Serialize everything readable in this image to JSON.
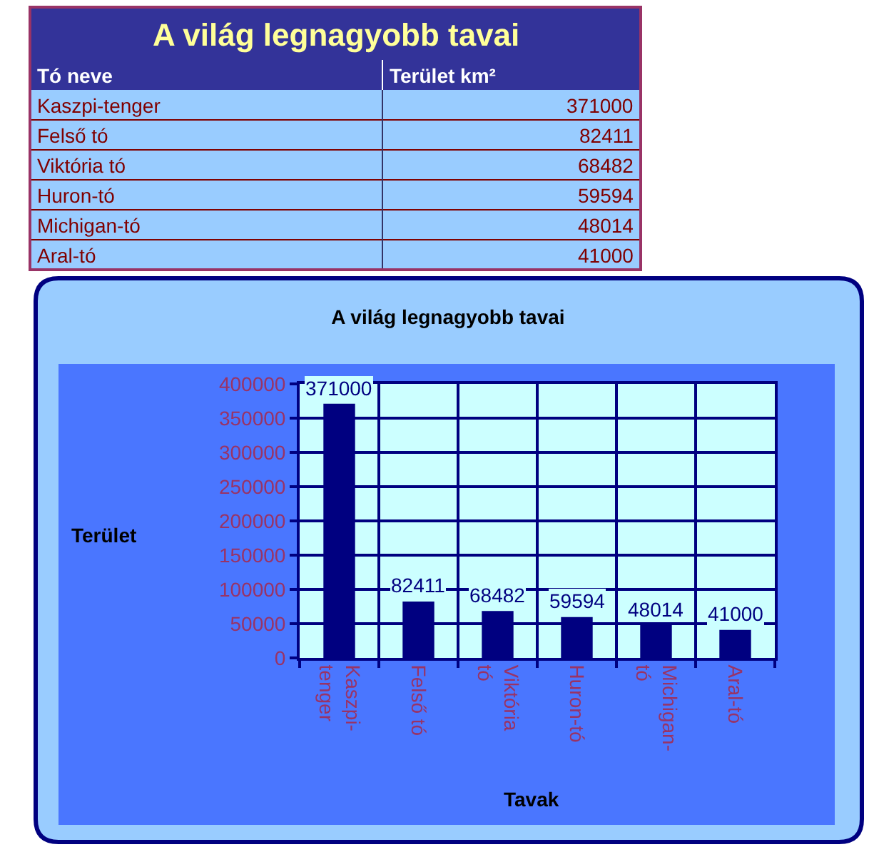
{
  "chart_data": [
    {
      "type": "other",
      "title": "A világ legnagyobb tavai",
      "annotations": [
        "Tó neve",
        "Terület km²"
      ],
      "categories": [
        "Kaszpi-tenger",
        "Felső tó",
        "Viktória tó",
        "Huron-tó",
        "Michigan-tó",
        "Aral-tó"
      ],
      "values": [
        371000,
        82411,
        68482,
        59594,
        48014,
        41000
      ],
      "data_labels": true
    },
    {
      "type": "bar",
      "title": "A világ legnagyobb tavai",
      "xlabel": "Tavak",
      "ylabel": "Terület",
      "categories": [
        "Kaszpi-tenger",
        "Felső tó",
        "Viktória tó",
        "Huron-tó",
        "Michigan-tó",
        "Aral-tó"
      ],
      "values": [
        371000,
        82411,
        68482,
        59594,
        48014,
        41000
      ],
      "color": "#000080",
      "ylim": [
        0,
        400000
      ],
      "yticks": [
        0,
        50000,
        100000,
        150000,
        200000,
        250000,
        300000,
        350000,
        400000
      ],
      "grid": true,
      "data_labels": true
    }
  ]
}
